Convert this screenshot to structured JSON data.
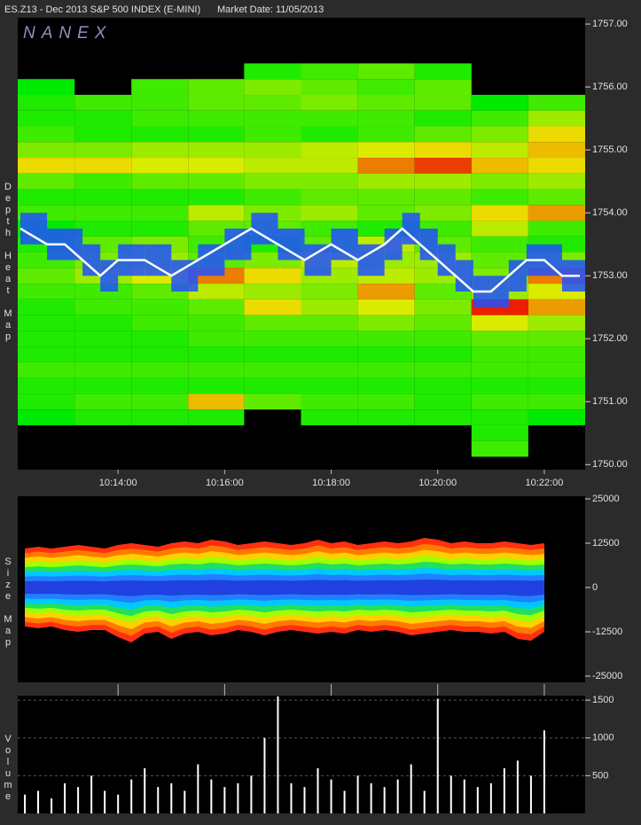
{
  "header": {
    "symbol": "ES.Z13 - Dec 2013 S&P 500 INDEX (E-MINI)",
    "market_date": "Market Date: 11/05/2013",
    "watermark": "NANEX"
  },
  "chart_data": [
    {
      "type": "heatmap",
      "ylabel": "Depth Heat Map",
      "xlim": [
        "10:12:07",
        "10:22:46"
      ],
      "xticks": [
        "10:14:00",
        "10:16:00",
        "10:18:00",
        "10:20:00",
        "10:22:00"
      ],
      "ylim": [
        1749.92,
        1757.1
      ],
      "yticks": [
        {
          "value": 1757,
          "label": "1757.00"
        },
        {
          "value": 1756,
          "label": "1756.00"
        },
        {
          "value": 1755,
          "label": "1755.00"
        },
        {
          "value": 1754,
          "label": "1754.00"
        },
        {
          "value": 1753,
          "label": "1753.00"
        },
        {
          "value": 1752,
          "label": "1752.00"
        },
        {
          "value": 1751,
          "label": "1751.00"
        },
        {
          "value": 1750,
          "label": "1750.00"
        }
      ],
      "time_bins": [
        "10:12:07",
        "10:13:11",
        "10:14:15",
        "10:15:19",
        "10:16:22",
        "10:17:26",
        "10:18:30",
        "10:19:34",
        "10:20:38",
        "10:21:42",
        "10:22:46"
      ],
      "price_levels": [
        1756.25,
        1756,
        1755.75,
        1755.5,
        1755.25,
        1755,
        1754.75,
        1754.5,
        1754.25,
        1754,
        1753.75,
        1753.5,
        1753.25,
        1753,
        1752.75,
        1752.5,
        1752.25,
        1752,
        1751.75,
        1751.5,
        1751.25,
        1751,
        1750.75,
        1750.5,
        1750.25
      ],
      "values": [
        [
          0,
          0,
          0,
          0,
          20,
          25,
          30,
          20,
          0,
          0
        ],
        [
          15,
          0,
          25,
          30,
          35,
          30,
          25,
          30,
          0,
          0
        ],
        [
          20,
          25,
          25,
          30,
          30,
          35,
          30,
          30,
          15,
          25
        ],
        [
          20,
          20,
          25,
          25,
          25,
          25,
          25,
          20,
          25,
          40
        ],
        [
          25,
          20,
          20,
          20,
          25,
          20,
          25,
          30,
          35,
          55
        ],
        [
          35,
          35,
          40,
          40,
          40,
          45,
          50,
          55,
          45,
          60
        ],
        [
          55,
          55,
          50,
          50,
          45,
          45,
          70,
          80,
          60,
          55
        ],
        [
          30,
          25,
          30,
          30,
          35,
          35,
          40,
          40,
          35,
          40
        ],
        [
          20,
          20,
          20,
          20,
          25,
          30,
          30,
          30,
          25,
          30
        ],
        [
          25,
          25,
          25,
          45,
          35,
          40,
          30,
          35,
          55,
          65
        ],
        [
          15,
          20,
          20,
          30,
          30,
          25,
          20,
          25,
          45,
          25
        ],
        [
          20,
          30,
          35,
          25,
          20,
          30,
          45,
          30,
          25,
          20
        ],
        [
          25,
          35,
          40,
          30,
          35,
          45,
          40,
          40,
          30,
          35
        ],
        [
          30,
          40,
          50,
          70,
          55,
          40,
          45,
          40,
          35,
          70
        ],
        [
          25,
          25,
          30,
          45,
          40,
          35,
          65,
          30,
          40,
          50
        ],
        [
          20,
          25,
          25,
          30,
          55,
          40,
          50,
          35,
          85,
          65
        ],
        [
          20,
          20,
          25,
          25,
          30,
          30,
          35,
          30,
          50,
          40
        ],
        [
          20,
          20,
          20,
          25,
          25,
          25,
          25,
          25,
          30,
          30
        ],
        [
          20,
          20,
          20,
          20,
          20,
          20,
          20,
          20,
          25,
          25
        ],
        [
          25,
          25,
          25,
          25,
          25,
          25,
          25,
          25,
          25,
          25
        ],
        [
          20,
          20,
          20,
          20,
          20,
          20,
          20,
          20,
          20,
          20
        ],
        [
          20,
          25,
          25,
          60,
          30,
          25,
          25,
          20,
          25,
          25
        ],
        [
          15,
          20,
          20,
          20,
          0,
          20,
          20,
          20,
          20,
          15
        ],
        [
          0,
          0,
          0,
          0,
          0,
          0,
          0,
          0,
          20,
          0
        ],
        [
          0,
          0,
          0,
          0,
          0,
          0,
          0,
          0,
          25,
          0
        ]
      ],
      "last": {
        "x": [
          "10:12:10",
          "10:12:40",
          "10:13:00",
          "10:13:20",
          "10:13:40",
          "10:14:00",
          "10:14:30",
          "10:15:00",
          "10:15:30",
          "10:16:00",
          "10:16:30",
          "10:17:00",
          "10:17:30",
          "10:18:00",
          "10:18:30",
          "10:19:00",
          "10:19:20",
          "10:19:40",
          "10:20:00",
          "10:20:20",
          "10:20:40",
          "10:21:00",
          "10:21:20",
          "10:21:40",
          "10:22:00",
          "10:22:20",
          "10:22:40"
        ],
        "values": [
          1753.75,
          1753.5,
          1753.5,
          1753.25,
          1753,
          1753.25,
          1753.25,
          1753,
          1753.25,
          1753.5,
          1753.75,
          1753.5,
          1753.25,
          1753.5,
          1753.25,
          1753.5,
          1753.75,
          1753.5,
          1753.25,
          1753,
          1752.75,
          1752.75,
          1753,
          1753.25,
          1753.25,
          1753,
          1753
        ],
        "color": "#ffffff",
        "band_color": "#2050ff"
      }
    },
    {
      "type": "area",
      "ylabel": "Size Map",
      "xlim": [
        "10:12:07",
        "10:22:46"
      ],
      "ylim": [
        -26750,
        25750
      ],
      "yticks": [
        25000,
        12500,
        0,
        -12500,
        -25000
      ],
      "x": [
        "10:12:15",
        "10:12:30",
        "10:12:45",
        "10:13:00",
        "10:13:15",
        "10:13:30",
        "10:13:45",
        "10:14:00",
        "10:14:15",
        "10:14:30",
        "10:14:45",
        "10:15:00",
        "10:15:15",
        "10:15:30",
        "10:15:45",
        "10:16:00",
        "10:16:15",
        "10:16:30",
        "10:16:45",
        "10:17:00",
        "10:17:15",
        "10:17:30",
        "10:17:45",
        "10:18:00",
        "10:18:15",
        "10:18:30",
        "10:18:45",
        "10:19:00",
        "10:19:15",
        "10:19:30",
        "10:19:45",
        "10:20:00",
        "10:20:15",
        "10:20:30",
        "10:20:45",
        "10:21:00",
        "10:21:15",
        "10:21:30",
        "10:21:45",
        "10:22:00"
      ],
      "series": [
        {
          "values": [
            11000,
            11500,
            11000,
            11500,
            12000,
            11500,
            11000,
            12000,
            12500,
            12000,
            11500,
            12500,
            13000,
            12500,
            13500,
            13000,
            12000,
            12500,
            13000,
            12500,
            12000,
            12500,
            13500,
            12500,
            13000,
            12000,
            12500,
            13000,
            12500,
            13000,
            14000,
            13500,
            12500,
            13000,
            12500,
            12500,
            13000,
            12500,
            12000,
            12500
          ]
        },
        {
          "values": [
            -11000,
            -11500,
            -11000,
            -12000,
            -12500,
            -12000,
            -12000,
            -14000,
            -15500,
            -13000,
            -12500,
            -14500,
            -13000,
            -12500,
            -13500,
            -13000,
            -12000,
            -12500,
            -13500,
            -12500,
            -12000,
            -12500,
            -13000,
            -12500,
            -13000,
            -12000,
            -12500,
            -12000,
            -12500,
            -13500,
            -13000,
            -12500,
            -12000,
            -12500,
            -12500,
            -13000,
            -12500,
            -14500,
            -15000,
            -12500
          ]
        }
      ],
      "colors": [
        "#ff3010",
        "#ff7a00",
        "#ffd000",
        "#a0ff00",
        "#20e060",
        "#00c8ff",
        "#2080ff",
        "#2040e0"
      ]
    },
    {
      "type": "bar",
      "ylabel": "Volume",
      "xlim": [
        "10:12:07",
        "10:22:46"
      ],
      "ylim": [
        0,
        1560
      ],
      "yticks": [
        1500,
        1000,
        500
      ],
      "grid": true,
      "color": "#ffffff",
      "x": [
        "10:12:15",
        "10:12:30",
        "10:12:45",
        "10:13:00",
        "10:13:15",
        "10:13:30",
        "10:13:45",
        "10:14:00",
        "10:14:15",
        "10:14:30",
        "10:14:45",
        "10:15:00",
        "10:15:15",
        "10:15:30",
        "10:15:45",
        "10:16:00",
        "10:16:15",
        "10:16:30",
        "10:16:45",
        "10:17:00",
        "10:17:15",
        "10:17:30",
        "10:17:45",
        "10:18:00",
        "10:18:15",
        "10:18:30",
        "10:18:45",
        "10:19:00",
        "10:19:15",
        "10:19:30",
        "10:19:45",
        "10:20:00",
        "10:20:15",
        "10:20:30",
        "10:20:45",
        "10:21:00",
        "10:21:15",
        "10:21:30",
        "10:21:45",
        "10:22:00"
      ],
      "values": [
        250,
        300,
        200,
        400,
        350,
        500,
        300,
        250,
        450,
        600,
        350,
        400,
        300,
        650,
        450,
        350,
        400,
        500,
        1000,
        1550,
        400,
        350,
        600,
        450,
        300,
        500,
        400,
        350,
        450,
        650,
        300,
        1520,
        500,
        450,
        350,
        400,
        600,
        700,
        500,
        1100
      ]
    }
  ]
}
